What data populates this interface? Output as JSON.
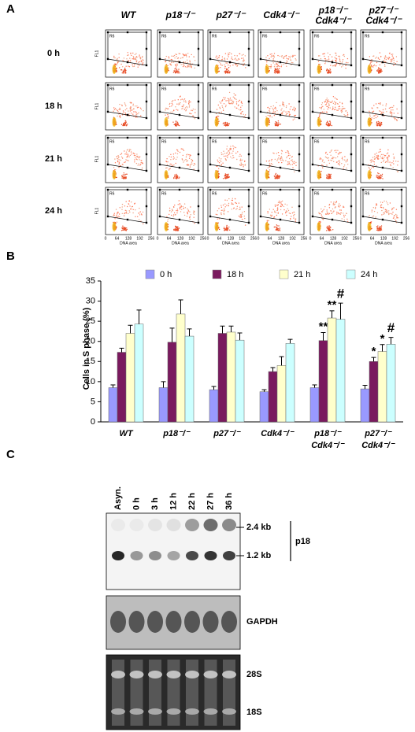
{
  "panel_a": {
    "label": "A",
    "columns": [
      [
        "WT"
      ],
      [
        "p18⁻/⁻"
      ],
      [
        "p27⁻/⁻"
      ],
      [
        "Cdk4⁻/⁻"
      ],
      [
        "p18⁻/⁻",
        "Cdk4⁻/⁻"
      ],
      [
        "p27⁻/⁻",
        "Cdk4⁻/⁻"
      ]
    ],
    "rows": [
      "0 h",
      "18 h",
      "21 h",
      "24 h"
    ],
    "y_axis_label": "FL1",
    "x_axis_label": "DNA area",
    "gate_label": "R6",
    "x_tick_labels": [
      "0",
      "64",
      "128",
      "192",
      "256"
    ]
  },
  "chart_data": {
    "type": "bar",
    "label": "B",
    "categories": [
      [
        "WT"
      ],
      [
        "p18⁻/⁻"
      ],
      [
        "p27⁻/⁻"
      ],
      [
        "Cdk4⁻/⁻"
      ],
      [
        "p18⁻/⁻",
        "Cdk4⁻/⁻"
      ],
      [
        "p27⁻/⁻",
        "Cdk4⁻/⁻"
      ]
    ],
    "ylabel": "Cells in S phase (%)",
    "ylim": [
      0,
      35
    ],
    "yticks": [
      0,
      5,
      10,
      15,
      20,
      25,
      30,
      35
    ],
    "series": [
      {
        "name": "0 h",
        "color": "#9999ff",
        "values": [
          8.5,
          8.5,
          8,
          7.5,
          8.5,
          8.2
        ],
        "errors": [
          0.7,
          1.5,
          0.8,
          0.5,
          0.7,
          0.9
        ],
        "markers": [
          null,
          null,
          null,
          null,
          null,
          null
        ]
      },
      {
        "name": "18 h",
        "color": "#7a1a5e",
        "values": [
          17.3,
          19.8,
          22,
          12.5,
          20.2,
          15
        ],
        "errors": [
          1,
          3.5,
          1.8,
          1,
          2,
          1
        ],
        "markers": [
          null,
          null,
          null,
          null,
          "**",
          "*"
        ]
      },
      {
        "name": "21 h",
        "color": "#ffffcc",
        "values": [
          22,
          26.8,
          22.3,
          14,
          25.8,
          17.5
        ],
        "errors": [
          2,
          3.5,
          1.5,
          2.2,
          1.8,
          1.7
        ],
        "markers": [
          null,
          null,
          null,
          null,
          "**",
          "*"
        ]
      },
      {
        "name": "24 h",
        "color": "#ccffff",
        "values": [
          24.3,
          21.3,
          20.3,
          19.5,
          25.5,
          19.3
        ],
        "errors": [
          3.5,
          1.8,
          1.8,
          1,
          4,
          1.7
        ],
        "markers": [
          null,
          null,
          null,
          null,
          "#",
          "#"
        ]
      }
    ]
  },
  "panel_c": {
    "label": "C",
    "lanes": [
      "Asyn.",
      "0 h",
      "3 h",
      "12 h",
      "22 h",
      "27 h",
      "36 h"
    ],
    "band_upper": "2.4 kb",
    "band_lower": "1.2 kb",
    "probe": "p18",
    "loading": "GAPDH",
    "rrna_upper": "28S",
    "rrna_lower": "18S"
  }
}
